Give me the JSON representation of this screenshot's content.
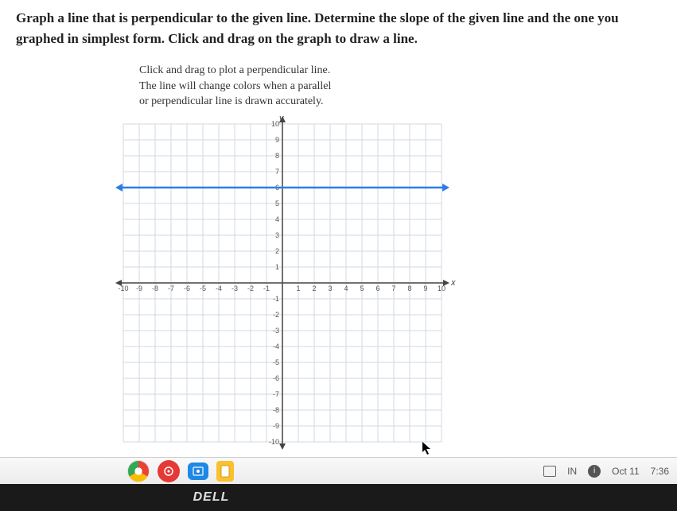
{
  "instructions": "Graph a line that is perpendicular to the given line. Determine the slope of the given line and the one you graphed in simplest form. Click and drag on the graph to draw a line.",
  "hint": {
    "line1": "Click and drag to plot a perpendicular line.",
    "line2": "The line will change colors when a parallel",
    "line3": "or perpendicular line is drawn accurately."
  },
  "chart": {
    "type": "line",
    "xlim": [
      -10,
      10
    ],
    "ylim": [
      -10,
      10
    ],
    "xtick_step": 1,
    "ytick_step": 1,
    "grid_color": "#d0d8e0",
    "axis_color": "#444444",
    "background_color": "#ffffff",
    "x_axis_label": "x",
    "y_axis_label": "y",
    "label_fontsize": 9,
    "given_line": {
      "y_value": 6,
      "color": "#2b7de9",
      "width": 2.5
    }
  },
  "taskbar": {
    "input_method": "IN",
    "date": "Oct 11",
    "time": "7:36"
  },
  "brand": "DELL"
}
